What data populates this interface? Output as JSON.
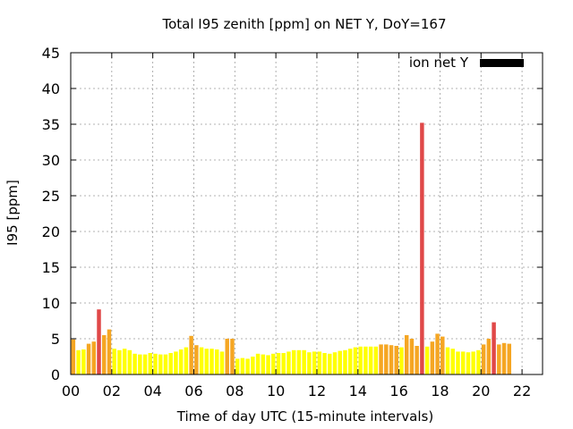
{
  "chart_data": {
    "type": "bar",
    "title": "Total I95 zenith [ppm] on NET Y, DoY=167",
    "xlabel": "Time of day UTC (15-minute intervals)",
    "ylabel": "I95 [ppm]",
    "ylim": [
      0,
      45
    ],
    "yticks": [
      "0",
      "5",
      "10",
      "15",
      "20",
      "25",
      "30",
      "35",
      "40",
      "45"
    ],
    "xlim_hours": [
      0,
      23
    ],
    "xticks": [
      "00",
      "02",
      "04",
      "06",
      "08",
      "10",
      "12",
      "14",
      "16",
      "18",
      "20",
      "22"
    ],
    "grid": true,
    "legend_position": "top-right",
    "series": [
      {
        "name": "ion net Y",
        "legend_color": "#000000",
        "interval_minutes": 15,
        "start_time": "00:00",
        "values": [
          4.9,
          3.4,
          3.5,
          4.3,
          4.6,
          9.1,
          5.5,
          6.3,
          3.6,
          3.4,
          3.6,
          3.4,
          2.9,
          2.8,
          2.8,
          3.0,
          2.9,
          2.8,
          2.8,
          3.0,
          3.2,
          3.5,
          3.8,
          5.4,
          4.1,
          3.8,
          3.6,
          3.6,
          3.5,
          3.2,
          5.0,
          5.0,
          2.2,
          2.3,
          2.2,
          2.5,
          2.9,
          2.8,
          2.7,
          2.9,
          3.0,
          3.0,
          3.2,
          3.4,
          3.4,
          3.4,
          3.1,
          3.2,
          3.2,
          3.0,
          2.9,
          3.1,
          3.3,
          3.4,
          3.6,
          3.8,
          3.9,
          3.9,
          3.9,
          3.9,
          4.2,
          4.2,
          4.1,
          4.0,
          3.8,
          5.5,
          5.0,
          4.0,
          35.2,
          3.9,
          4.6,
          5.7,
          5.3,
          3.8,
          3.6,
          3.2,
          3.2,
          3.1,
          3.2,
          3.4,
          4.2,
          5.0,
          7.3,
          4.2,
          4.4,
          4.3
        ]
      }
    ],
    "color_scale": {
      "low": "#ffff00",
      "mid": "#f5a623",
      "high": "#e04848",
      "mid_threshold": 4.0,
      "high_threshold": 6.4
    }
  }
}
